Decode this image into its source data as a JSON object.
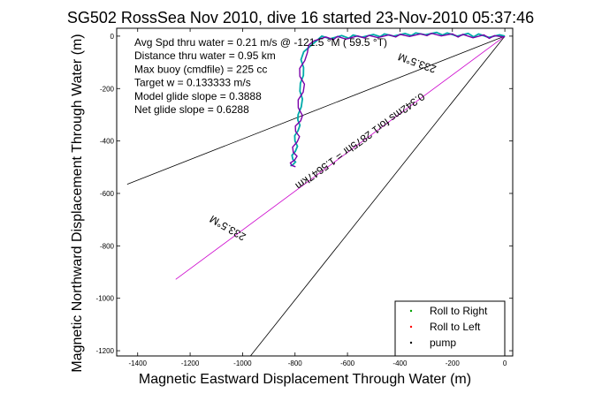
{
  "chart_data": {
    "type": "line",
    "title": "SG502 RossSea Nov 2010, dive 16 started 23-Nov-2010 05:37:46",
    "xlabel": "Magnetic Eastward Displacement Through Water (m)",
    "ylabel": "Magnetic Northward Displacement Through Water (m)",
    "xlim": [
      -1480,
      30
    ],
    "ylim": [
      -1220,
      30
    ],
    "xticks": [
      -1400,
      -1200,
      -1000,
      -800,
      -600,
      -400,
      -200,
      0
    ],
    "yticks": [
      0,
      -200,
      -400,
      -600,
      -800,
      -1000,
      -1200
    ],
    "grid": false,
    "legend_position": "bottom-right",
    "annotations": [
      "Avg Spd thru water =  0.21 m/s @ -121.5 °M ( 59.5 °T)",
      "Distance thru water =  0.95 km",
      "Max buoy (cmdfile) = 225 cc",
      "Target w = 0.133333 m/s",
      "Model glide slope = 0.3888",
      "Net glide slope = 0.6288"
    ],
    "line_labels": [
      "233.5°M",
      "0.342ms for1 2875hr = 1.5647km",
      "233.5°M"
    ],
    "reference_lines": [
      {
        "color": "#000000",
        "x": [
          0,
          -1440
        ],
        "y": [
          0,
          -565
        ]
      },
      {
        "color": "#000000",
        "x": [
          0,
          -970
        ],
        "y": [
          0,
          -1220
        ]
      },
      {
        "color": "#cc00cc",
        "x": [
          0,
          -1255
        ],
        "y": [
          0,
          -928
        ]
      }
    ],
    "track": {
      "x": [
        0,
        -30,
        -60,
        -90,
        -120,
        -150,
        -180,
        -210,
        -240,
        -270,
        -300,
        -330,
        -360,
        -390,
        -420,
        -450,
        -480,
        -510,
        -540,
        -570,
        -600,
        -630,
        -660,
        -690,
        -720,
        -740,
        -760,
        -770,
        -775,
        -775,
        -772,
        -775,
        -780,
        -782,
        -780,
        -784,
        -790,
        -793,
        -792,
        -796,
        -800,
        -803,
        -802,
        -805,
        -808,
        -810,
        -808
      ],
      "y": [
        0,
        5,
        -5,
        8,
        -3,
        10,
        0,
        12,
        4,
        14,
        5,
        12,
        2,
        10,
        0,
        8,
        -2,
        6,
        -4,
        4,
        -8,
        2,
        -10,
        0,
        -14,
        -30,
        -60,
        -90,
        -120,
        -150,
        -180,
        -210,
        -240,
        -270,
        -300,
        -320,
        -340,
        -360,
        -380,
        -400,
        -420,
        -440,
        -455,
        -470,
        -480,
        -490,
        -495
      ]
    },
    "legend": [
      {
        "label": "Roll to Right",
        "color": "#00a000",
        "marker": "."
      },
      {
        "label": "Roll to Left",
        "color": "#ff0000",
        "marker": "."
      },
      {
        "label": "pump",
        "color": "#000000",
        "marker": "."
      }
    ],
    "colors": {
      "track_a": "#7a00aa",
      "track_b": "#00aaaa"
    }
  }
}
